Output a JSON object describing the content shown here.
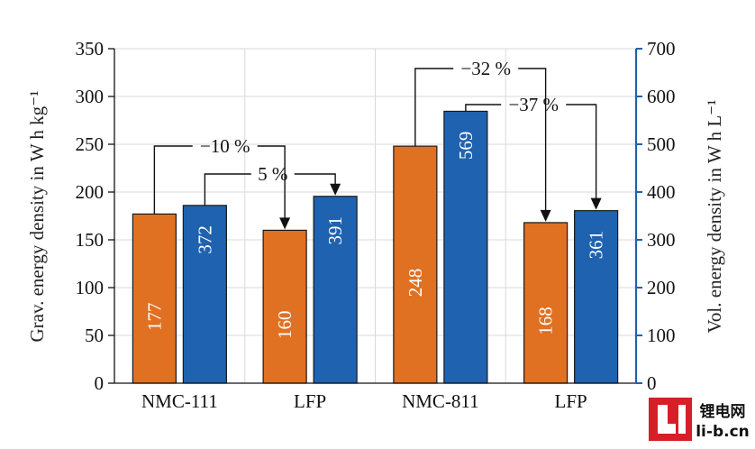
{
  "chart_data": {
    "type": "bar",
    "categories": [
      "NMC-111",
      "LFP",
      "NMC-811",
      "LFP"
    ],
    "series": [
      {
        "axis": "left",
        "color": "#e07022",
        "values": [
          177,
          160,
          248,
          168
        ]
      },
      {
        "axis": "right",
        "color": "#1f62b0",
        "values": [
          372,
          391,
          569,
          361
        ]
      }
    ],
    "bar_labels": {
      "left": [
        "177",
        "160",
        "248",
        "168"
      ],
      "right": [
        "372",
        "391",
        "569",
        "361"
      ]
    },
    "ylabel_left": "Grav. energy density in W h kg⁻¹",
    "ylabel_right": "Vol. energy density in W h L⁻¹",
    "ylim_left": [
      0,
      350
    ],
    "ylim_right": [
      0,
      700
    ],
    "yticks_left": [
      0,
      50,
      100,
      150,
      200,
      250,
      300,
      350
    ],
    "yticks_right": [
      0,
      100,
      200,
      300,
      400,
      500,
      600,
      700
    ],
    "grid": true,
    "annotations": [
      {
        "text": "−10 %",
        "from_category": 0,
        "to_category": 1,
        "series": "left"
      },
      {
        "text": "5 %",
        "from_category": 0,
        "to_category": 1,
        "series": "right"
      },
      {
        "text": "−32 %",
        "from_category": 2,
        "to_category": 3,
        "series": "left"
      },
      {
        "text": "−37 %",
        "from_category": 2,
        "to_category": 3,
        "series": "right"
      }
    ],
    "right_axis_color": "#1f62b0"
  },
  "watermark": {
    "text_top": "锂电网",
    "text_bottom": "li-b.cn",
    "logo_color": "#d61f26"
  }
}
